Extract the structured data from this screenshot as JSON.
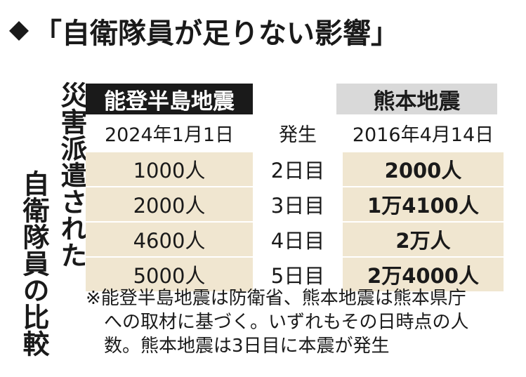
{
  "header": {
    "icon": "diamond-icon",
    "title": "「自衛隊員が足りない影響」"
  },
  "vertical_title": {
    "line1": "災害派遣された",
    "line2": "自衛隊員の比較"
  },
  "table": {
    "left_header": "能登半島地震",
    "right_header": "熊本地震",
    "left_date": "2024年1月1日",
    "mid_date": "発生",
    "right_date": "2016年4月14日",
    "rows": [
      {
        "left": "1000人",
        "mid": "2日目",
        "right": "2000人"
      },
      {
        "left": "2000人",
        "mid": "3日目",
        "right": "1万4100人"
      },
      {
        "left": "4600人",
        "mid": "4日目",
        "right": "2万人"
      },
      {
        "left": "5000人",
        "mid": "5日目",
        "right": "2万4000人"
      }
    ]
  },
  "note": {
    "line1": "※能登半島地震は防衛省、熊本地震は熊本県庁",
    "line2": "への取材に基づく。いずれもその日時点の人",
    "line3": "数。熊本地震は3日目に本震が発生"
  },
  "colors": {
    "text": "#1a1a1a",
    "left_header_bg": "#1a1a1a",
    "right_header_bg": "#d9d9d9",
    "data_row_bg": "#f0e6d0"
  }
}
